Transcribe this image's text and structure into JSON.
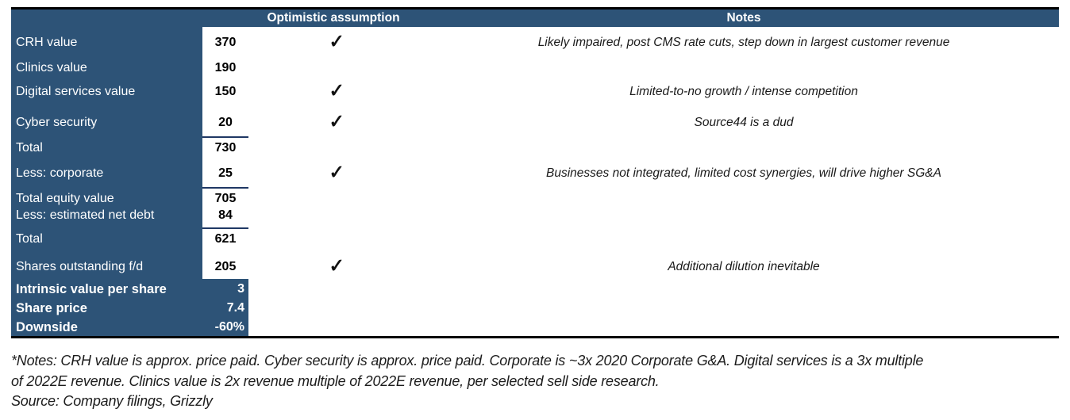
{
  "table": {
    "headers": {
      "optimistic": "Optimistic assumption",
      "notes": "Notes"
    },
    "rows": [
      {
        "label": "CRH value",
        "value": "370",
        "check": "✓",
        "note": "Likely impaired, post CMS rate cuts, step down in largest customer revenue"
      },
      {
        "label": "Clinics value",
        "value": "190",
        "check": "",
        "note": ""
      },
      {
        "label": "Digital services value",
        "value": "150",
        "check": "✓",
        "note": "Limited-to-no growth / intense competition"
      },
      {
        "label": "Cyber security",
        "value": "20",
        "check": "✓",
        "note": "Source44 is a dud"
      },
      {
        "label": "Total",
        "value": "730",
        "check": "",
        "note": ""
      },
      {
        "label": "Less: corporate",
        "value": "25",
        "check": "✓",
        "note": "Businesses not integrated, limited cost synergies, will drive higher SG&A"
      },
      {
        "label": "Total equity value",
        "value": "705",
        "check": "",
        "note": ""
      },
      {
        "label": "Less: estimated net debt",
        "value": "84",
        "check": "",
        "note": ""
      },
      {
        "label": "Total",
        "value": "621",
        "check": "",
        "note": ""
      },
      {
        "label": "Shares outstanding f/d",
        "value": "205",
        "check": "✓",
        "note": "Additional dilution inevitable"
      },
      {
        "label": "Intrinsic value per share",
        "value": "3",
        "check": "",
        "note": ""
      },
      {
        "label": "Share price",
        "value": "7.4",
        "check": "",
        "note": ""
      },
      {
        "label": "Downside",
        "value": "-60%",
        "check": "",
        "note": ""
      }
    ]
  },
  "footnotes": {
    "line1": "*Notes: CRH value is approx. price paid. Cyber security is approx. price paid. Corporate is ~3x 2020 Corporate G&A. Digital services is a 3x multiple",
    "line2": "of 2022E revenue. Clinics value is 2x revenue multiple of 2022E revenue, per selected sell side research.",
    "source": "Source: Company filings, Grizzly"
  },
  "colors": {
    "header_bg": "#2d5377",
    "rule_line": "#1f3864",
    "table_border": "#000000",
    "header_text": "#ffffff",
    "value_text": "#000000"
  }
}
